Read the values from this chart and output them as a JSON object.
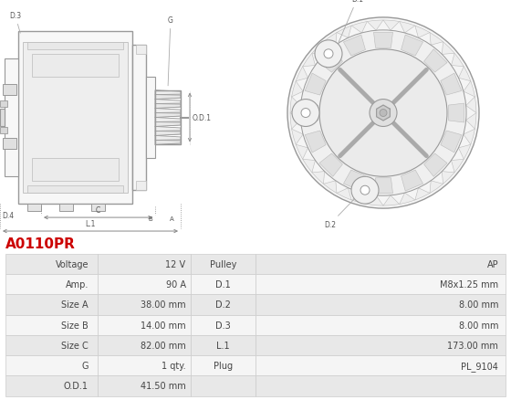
{
  "title": "A0110PR",
  "title_color": "#cc0000",
  "background_color": "#ffffff",
  "table_border_color": "#cccccc",
  "table_row_bg1": "#e8e8e8",
  "table_row_bg2": "#f5f5f5",
  "table_text_color": "#444444",
  "rows": [
    [
      "Voltage",
      "12 V",
      "Pulley",
      "AP"
    ],
    [
      "Amp.",
      "90 A",
      "D.1",
      "M8x1.25 mm"
    ],
    [
      "Size A",
      "38.00 mm",
      "D.2",
      "8.00 mm"
    ],
    [
      "Size B",
      "14.00 mm",
      "D.3",
      "8.00 mm"
    ],
    [
      "Size C",
      "82.00 mm",
      "L.1",
      "173.00 mm"
    ],
    [
      "G",
      "1 qty.",
      "Plug",
      "PL_9104"
    ],
    [
      "O.D.1",
      "41.50 mm",
      "",
      ""
    ]
  ],
  "line_color": "#999999",
  "line_color2": "#bbbbbb",
  "label_color": "#555555"
}
